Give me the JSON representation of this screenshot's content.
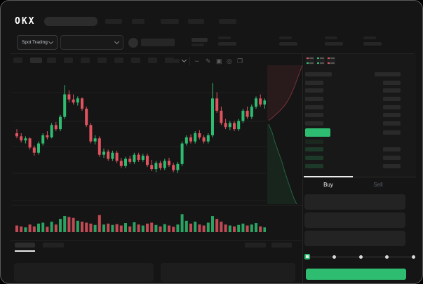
{
  "header": {
    "logo": "OKX",
    "nav_items": 5
  },
  "market_bar": {
    "selector_label": "Spot Trading",
    "selector_chevron": "chevron-down-icon",
    "pair_dropdown_chevron": "chevron-down-icon"
  },
  "toolbar": {
    "timeframe_placeholders": 10,
    "active_timeframe_index": 1,
    "icons": [
      "chevron-down-icon",
      "wave-icon",
      "pencil-icon",
      "camera-icon",
      "gear-icon",
      "expand-icon"
    ]
  },
  "orderbook": {
    "mode_icons": [
      "book-both-icon",
      "book-bids-icon",
      "book-asks-icon"
    ],
    "ask_rows": 6,
    "bid_rows": [
      {
        "has_size": false
      },
      {
        "has_size": true
      },
      {
        "has_size": true
      },
      {
        "has_size": true
      }
    ],
    "accent_green": "#2ebd70",
    "accent_red": "#e0535f"
  },
  "trade_panel": {
    "tabs": [
      {
        "label": "Buy",
        "active": true
      },
      {
        "label": "Sell",
        "active": false
      }
    ],
    "input_fields": 3,
    "slider_stops": 5,
    "submit_color": "#2ebd70"
  },
  "bottom_bar": {
    "left_tabs": 2,
    "active_left_tab_index": 0,
    "right_buttons": 2,
    "panels": 2
  },
  "chart_data": {
    "type": "candlestick",
    "title": "",
    "xlabel": "",
    "ylabel": "",
    "units": "relative 0-100 (no axis labels visible in screenshot)",
    "grid": true,
    "colors": {
      "up": "#2ebd70",
      "down": "#e0535f"
    },
    "candles": [
      {
        "o": 50,
        "h": 54,
        "l": 45,
        "c": 47
      },
      {
        "o": 47,
        "h": 50,
        "l": 41,
        "c": 43
      },
      {
        "o": 43,
        "h": 47,
        "l": 40,
        "c": 45
      },
      {
        "o": 45,
        "h": 46,
        "l": 34,
        "c": 36
      },
      {
        "o": 36,
        "h": 38,
        "l": 28,
        "c": 31
      },
      {
        "o": 31,
        "h": 42,
        "l": 29,
        "c": 40
      },
      {
        "o": 40,
        "h": 50,
        "l": 38,
        "c": 48
      },
      {
        "o": 48,
        "h": 52,
        "l": 44,
        "c": 46
      },
      {
        "o": 46,
        "h": 60,
        "l": 45,
        "c": 58
      },
      {
        "o": 58,
        "h": 61,
        "l": 52,
        "c": 54
      },
      {
        "o": 54,
        "h": 68,
        "l": 52,
        "c": 66
      },
      {
        "o": 66,
        "h": 97,
        "l": 64,
        "c": 88
      },
      {
        "o": 88,
        "h": 92,
        "l": 80,
        "c": 83
      },
      {
        "o": 83,
        "h": 88,
        "l": 78,
        "c": 80
      },
      {
        "o": 80,
        "h": 86,
        "l": 77,
        "c": 84
      },
      {
        "o": 84,
        "h": 85,
        "l": 72,
        "c": 74
      },
      {
        "o": 74,
        "h": 76,
        "l": 56,
        "c": 58
      },
      {
        "o": 58,
        "h": 60,
        "l": 40,
        "c": 42
      },
      {
        "o": 42,
        "h": 48,
        "l": 39,
        "c": 45
      },
      {
        "o": 45,
        "h": 47,
        "l": 27,
        "c": 29
      },
      {
        "o": 29,
        "h": 35,
        "l": 26,
        "c": 32
      },
      {
        "o": 32,
        "h": 34,
        "l": 23,
        "c": 25
      },
      {
        "o": 25,
        "h": 33,
        "l": 23,
        "c": 31
      },
      {
        "o": 31,
        "h": 33,
        "l": 21,
        "c": 23
      },
      {
        "o": 23,
        "h": 26,
        "l": 16,
        "c": 18
      },
      {
        "o": 18,
        "h": 27,
        "l": 16,
        "c": 25
      },
      {
        "o": 25,
        "h": 28,
        "l": 20,
        "c": 22
      },
      {
        "o": 22,
        "h": 31,
        "l": 20,
        "c": 29
      },
      {
        "o": 29,
        "h": 31,
        "l": 22,
        "c": 24
      },
      {
        "o": 24,
        "h": 30,
        "l": 22,
        "c": 28
      },
      {
        "o": 28,
        "h": 30,
        "l": 17,
        "c": 19
      },
      {
        "o": 19,
        "h": 24,
        "l": 13,
        "c": 15
      },
      {
        "o": 15,
        "h": 23,
        "l": 12,
        "c": 21
      },
      {
        "o": 21,
        "h": 23,
        "l": 14,
        "c": 16
      },
      {
        "o": 16,
        "h": 25,
        "l": 14,
        "c": 23
      },
      {
        "o": 23,
        "h": 26,
        "l": 17,
        "c": 19
      },
      {
        "o": 19,
        "h": 21,
        "l": 12,
        "c": 14
      },
      {
        "o": 14,
        "h": 22,
        "l": 11,
        "c": 20
      },
      {
        "o": 20,
        "h": 42,
        "l": 18,
        "c": 40
      },
      {
        "o": 40,
        "h": 48,
        "l": 38,
        "c": 46
      },
      {
        "o": 46,
        "h": 49,
        "l": 40,
        "c": 42
      },
      {
        "o": 42,
        "h": 52,
        "l": 40,
        "c": 50
      },
      {
        "o": 50,
        "h": 53,
        "l": 44,
        "c": 46
      },
      {
        "o": 46,
        "h": 48,
        "l": 40,
        "c": 42
      },
      {
        "o": 42,
        "h": 50,
        "l": 40,
        "c": 48
      },
      {
        "o": 48,
        "h": 99,
        "l": 46,
        "c": 84
      },
      {
        "o": 84,
        "h": 90,
        "l": 70,
        "c": 72
      },
      {
        "o": 72,
        "h": 76,
        "l": 58,
        "c": 60
      },
      {
        "o": 60,
        "h": 64,
        "l": 54,
        "c": 56
      },
      {
        "o": 56,
        "h": 62,
        "l": 53,
        "c": 60
      },
      {
        "o": 60,
        "h": 62,
        "l": 52,
        "c": 54
      },
      {
        "o": 54,
        "h": 64,
        "l": 52,
        "c": 62
      },
      {
        "o": 62,
        "h": 74,
        "l": 60,
        "c": 72
      },
      {
        "o": 72,
        "h": 76,
        "l": 64,
        "c": 66
      },
      {
        "o": 66,
        "h": 78,
        "l": 64,
        "c": 76
      },
      {
        "o": 76,
        "h": 86,
        "l": 74,
        "c": 84
      },
      {
        "o": 84,
        "h": 88,
        "l": 76,
        "c": 78
      },
      {
        "o": 78,
        "h": 84,
        "l": 74,
        "c": 82
      }
    ],
    "volume": [
      35,
      30,
      25,
      40,
      30,
      45,
      50,
      28,
      55,
      40,
      70,
      85,
      80,
      75,
      60,
      55,
      50,
      45,
      38,
      90,
      40,
      45,
      38,
      42,
      35,
      48,
      30,
      52,
      40,
      35,
      45,
      50,
      38,
      30,
      42,
      35,
      28,
      40,
      95,
      60,
      45,
      55,
      40,
      35,
      50,
      85,
      70,
      55,
      40,
      35,
      30,
      38,
      45,
      35,
      40,
      48,
      30,
      25
    ],
    "depth": {
      "orientation": "vertical",
      "asks_line": [
        [
          50,
          0
        ],
        [
          44,
          16
        ],
        [
          39,
          30
        ],
        [
          33,
          44
        ],
        [
          26,
          56
        ],
        [
          17,
          66
        ],
        [
          8,
          74
        ],
        [
          2,
          79
        ]
      ],
      "bids_line": [
        [
          2,
          84
        ],
        [
          7,
          96
        ],
        [
          11,
          110
        ],
        [
          16,
          124
        ],
        [
          21,
          138
        ],
        [
          25,
          152
        ],
        [
          29,
          164
        ],
        [
          33,
          176
        ],
        [
          38,
          190
        ],
        [
          42,
          198
        ]
      ]
    }
  }
}
